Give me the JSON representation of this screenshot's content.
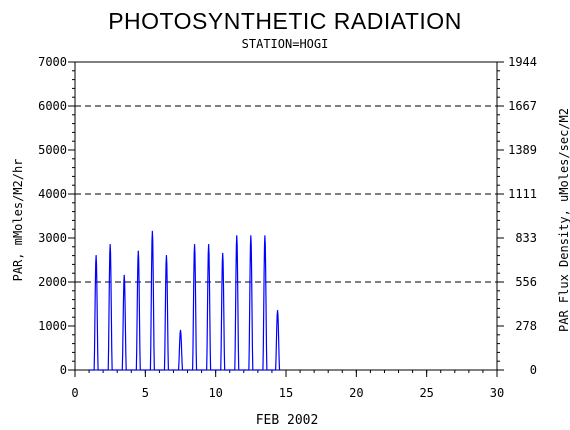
{
  "chart_data": {
    "type": "line",
    "title": "PHOTOSYNTHETIC RADIATION",
    "subtitle": "STATION=HOGI",
    "xlabel": "FEB 2002",
    "ylabel": "PAR, mMoles/M2/hr",
    "ylabel_right": "PAR Flux Density, uMoles/sec/M2",
    "xlim": [
      0,
      30
    ],
    "ylim": [
      0,
      7000
    ],
    "x_ticks": [
      "0",
      "5",
      "10",
      "15",
      "20",
      "25",
      "30"
    ],
    "y_ticks": [
      "0",
      "1000",
      "2000",
      "3000",
      "4000",
      "5000",
      "6000",
      "7000"
    ],
    "y_right_ticks": [
      "0",
      "278",
      "556",
      "833",
      "1111",
      "1389",
      "1667",
      "1944"
    ],
    "reference_lines": [
      2000,
      4000,
      6000
    ],
    "line_color": "#0000ff",
    "daily_peaks": [
      {
        "day": 1.5,
        "par": 2600
      },
      {
        "day": 2.5,
        "par": 2850
      },
      {
        "day": 3.5,
        "par": 2150
      },
      {
        "day": 4.5,
        "par": 2700
      },
      {
        "day": 5.5,
        "par": 3150
      },
      {
        "day": 6.5,
        "par": 2600
      },
      {
        "day": 7.5,
        "par": 900
      },
      {
        "day": 8.5,
        "par": 2850
      },
      {
        "day": 9.5,
        "par": 2850
      },
      {
        "day": 10.5,
        "par": 2650
      },
      {
        "day": 11.5,
        "par": 3050
      },
      {
        "day": 12.5,
        "par": 3050
      },
      {
        "day": 13.5,
        "par": 3050
      },
      {
        "day": 14.4,
        "par": 1350
      }
    ]
  }
}
